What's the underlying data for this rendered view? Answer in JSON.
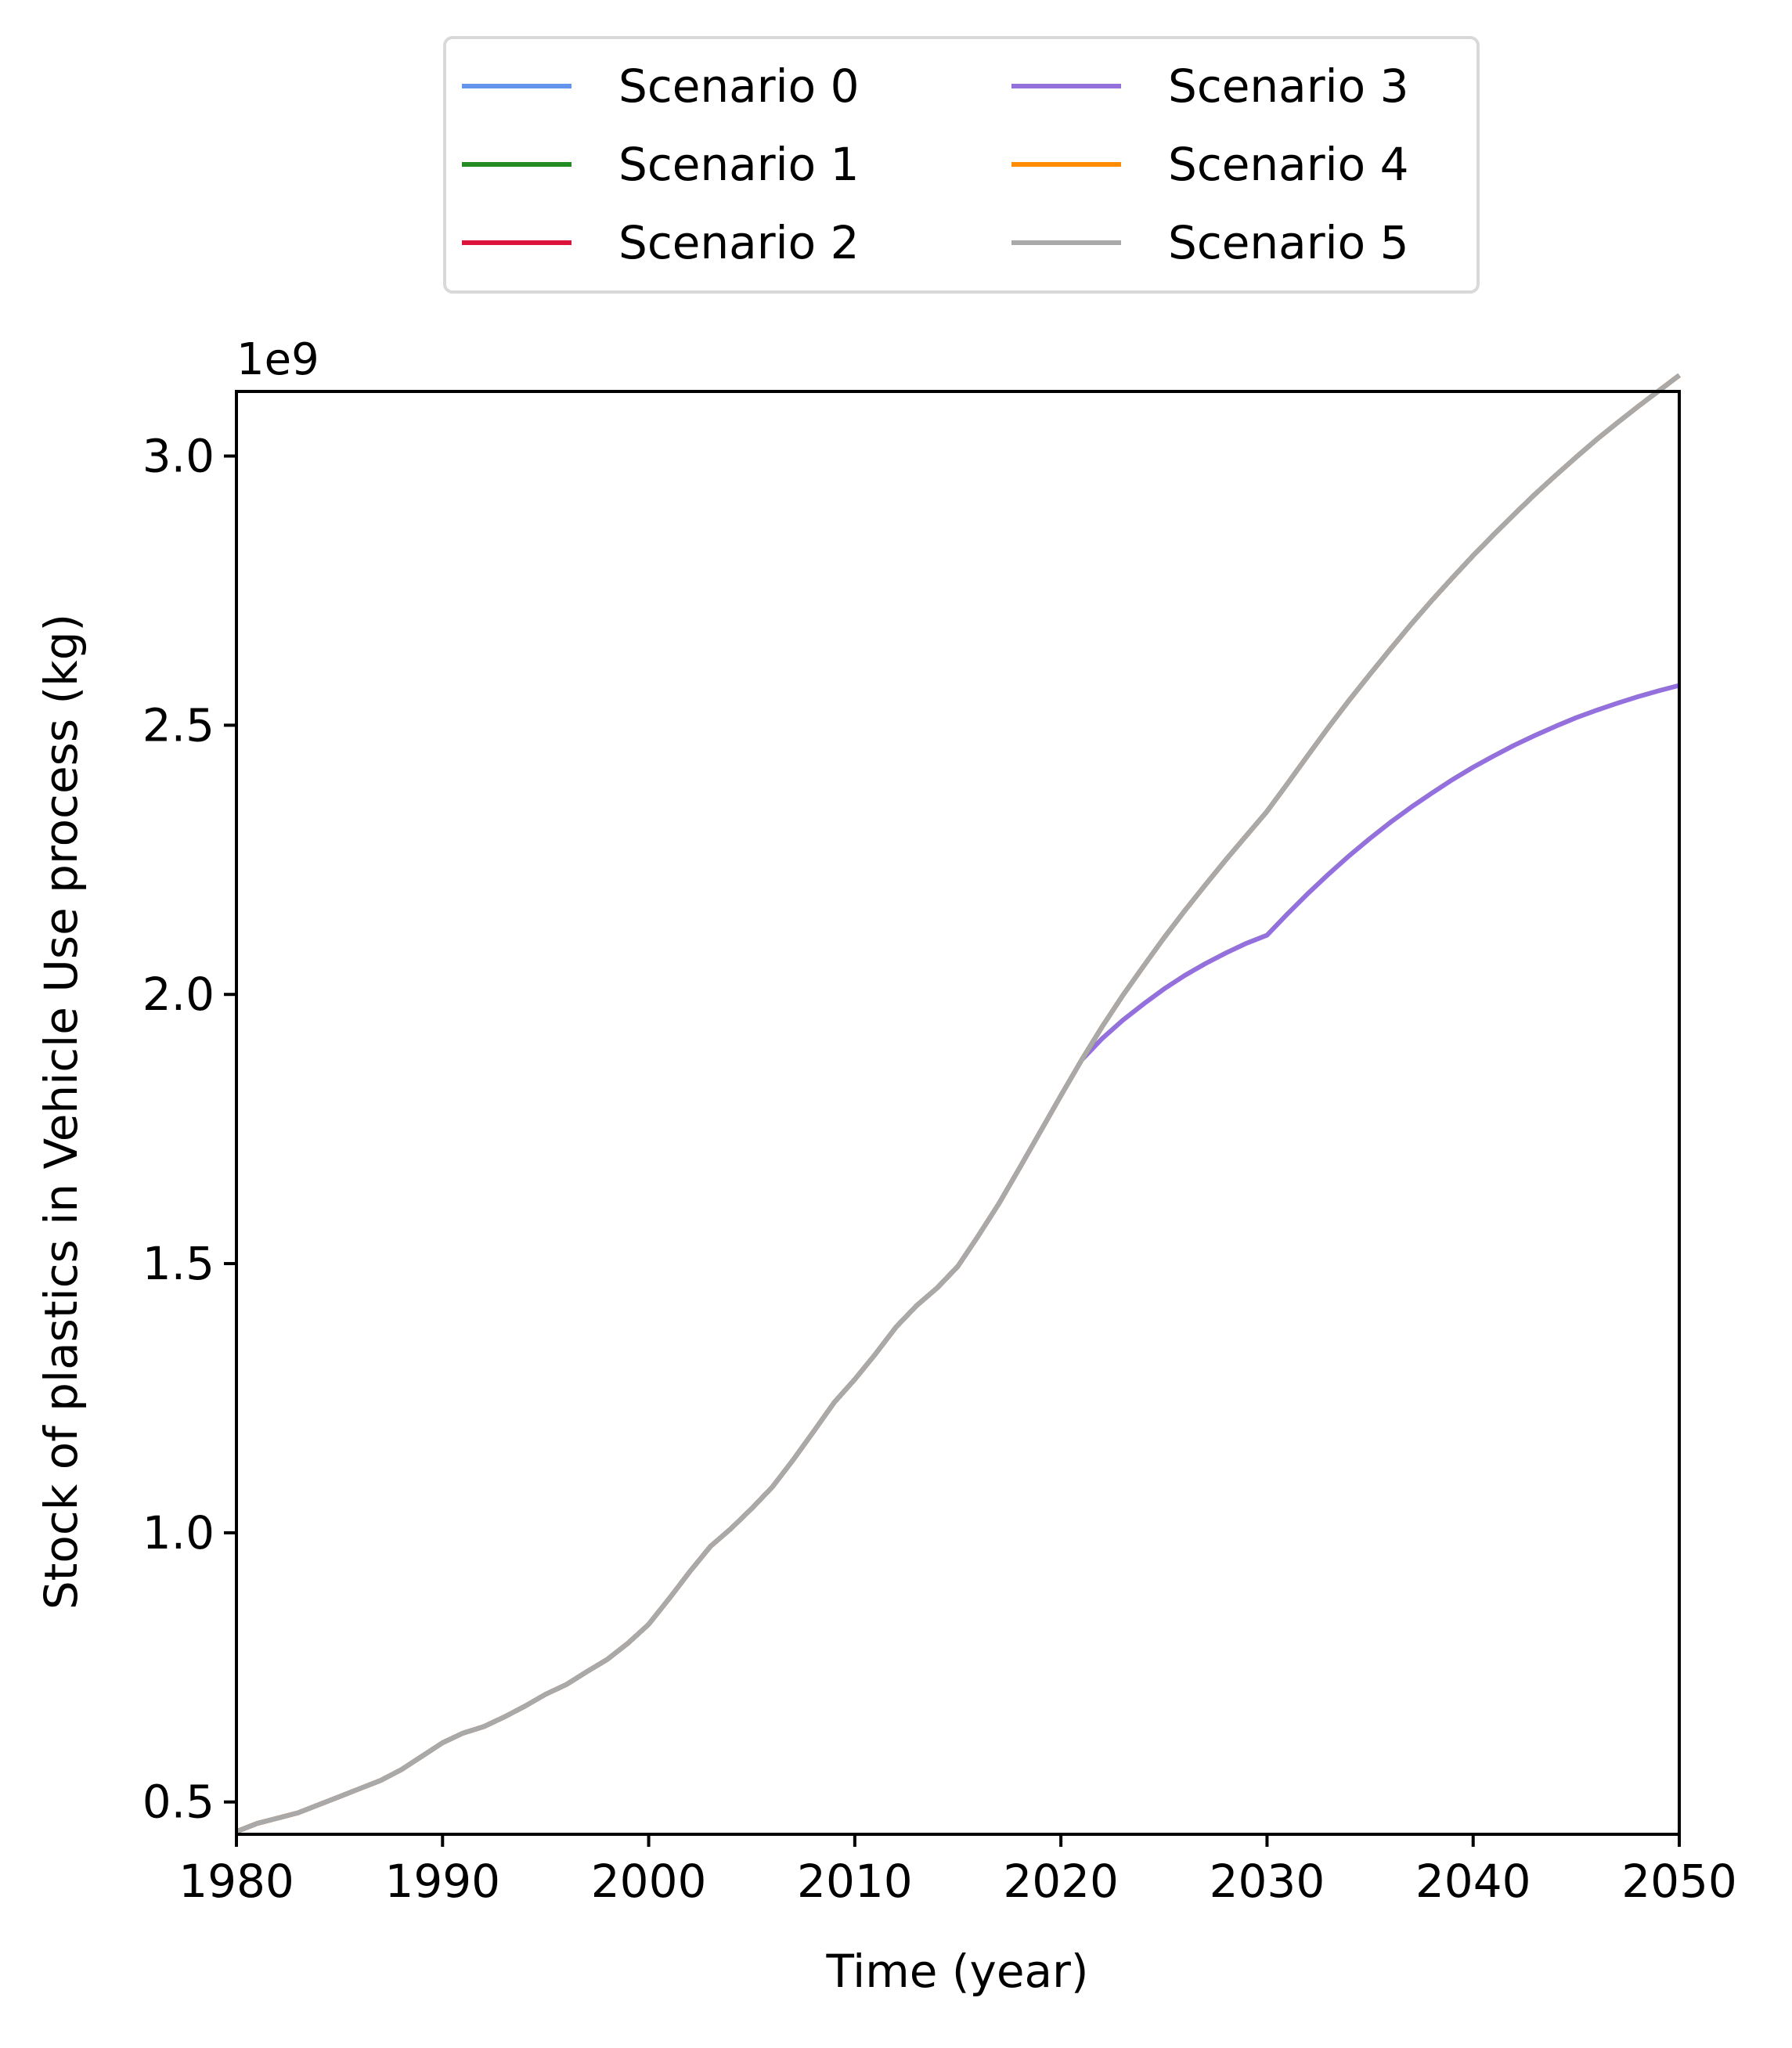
{
  "chart_data": {
    "type": "line",
    "title": "",
    "xlabel": "Time (year)",
    "ylabel": "Stock of plastics in Vehicle Use process (kg)",
    "y_offset_label": "1e9",
    "xlim": [
      1980,
      2050
    ],
    "ylim": [
      0.44,
      3.12
    ],
    "y_scale_note": "values in units of 1e9 kg",
    "x_ticks": [
      1980,
      1990,
      2000,
      2010,
      2020,
      2030,
      2040,
      2050
    ],
    "x_tick_labels": [
      "1980",
      "1990",
      "2000",
      "2010",
      "2020",
      "2030",
      "2040",
      "2050"
    ],
    "y_ticks": [
      0.5,
      1.0,
      1.5,
      2.0,
      2.5,
      3.0
    ],
    "y_tick_labels": [
      "0.5",
      "1.0",
      "1.5",
      "2.0",
      "2.5",
      "3.0"
    ],
    "grid": false,
    "legend": {
      "placement": "top-center, above plot",
      "columns": 2
    },
    "x": [
      1980,
      1981,
      1982,
      1983,
      1984,
      1985,
      1986,
      1987,
      1988,
      1989,
      1990,
      1991,
      1992,
      1993,
      1994,
      1995,
      1996,
      1997,
      1998,
      1999,
      2000,
      2001,
      2002,
      2003,
      2004,
      2005,
      2006,
      2007,
      2008,
      2009,
      2010,
      2011,
      2012,
      2013,
      2014,
      2015,
      2016,
      2017,
      2018,
      2019,
      2020,
      2021,
      2022,
      2023,
      2024,
      2025,
      2026,
      2027,
      2028,
      2029,
      2030,
      2031,
      2032,
      2033,
      2034,
      2035,
      2036,
      2037,
      2038,
      2039,
      2040,
      2041,
      2042,
      2043,
      2044,
      2045,
      2046,
      2047,
      2048,
      2049,
      2050
    ],
    "series": [
      {
        "name": "Scenario 0",
        "color": "#6495ED",
        "values": [
          0.445,
          0.46,
          0.47,
          0.48,
          0.495,
          0.51,
          0.525,
          0.54,
          0.56,
          0.585,
          0.61,
          0.628,
          0.64,
          0.658,
          0.678,
          0.7,
          0.718,
          0.742,
          0.765,
          0.795,
          0.83,
          0.878,
          0.928,
          0.975,
          1.008,
          1.045,
          1.085,
          1.135,
          1.188,
          1.242,
          1.285,
          1.332,
          1.382,
          1.422,
          1.455,
          1.495,
          1.552,
          1.612,
          1.678,
          1.745,
          1.812,
          1.878,
          1.94,
          1.998,
          2.052,
          2.105,
          2.155,
          2.203,
          2.25,
          2.295,
          2.34,
          2.392,
          2.445,
          2.497,
          2.547,
          2.595,
          2.642,
          2.688,
          2.732,
          2.774,
          2.815,
          2.854,
          2.892,
          2.929,
          2.964,
          2.998,
          3.031,
          3.062,
          3.092,
          3.121,
          3.15
        ]
      },
      {
        "name": "Scenario 1",
        "color": "#228B22",
        "values": [
          0.445,
          0.46,
          0.47,
          0.48,
          0.495,
          0.51,
          0.525,
          0.54,
          0.56,
          0.585,
          0.61,
          0.628,
          0.64,
          0.658,
          0.678,
          0.7,
          0.718,
          0.742,
          0.765,
          0.795,
          0.83,
          0.878,
          0.928,
          0.975,
          1.008,
          1.045,
          1.085,
          1.135,
          1.188,
          1.242,
          1.285,
          1.332,
          1.382,
          1.422,
          1.455,
          1.495,
          1.552,
          1.612,
          1.678,
          1.745,
          1.812,
          1.878,
          1.94,
          1.998,
          2.052,
          2.105,
          2.155,
          2.203,
          2.25,
          2.295,
          2.34,
          2.392,
          2.445,
          2.497,
          2.547,
          2.595,
          2.642,
          2.688,
          2.732,
          2.774,
          2.815,
          2.854,
          2.892,
          2.929,
          2.964,
          2.998,
          3.031,
          3.062,
          3.092,
          3.121,
          3.15
        ]
      },
      {
        "name": "Scenario 2",
        "color": "#DC143C",
        "values": [
          0.445,
          0.46,
          0.47,
          0.48,
          0.495,
          0.51,
          0.525,
          0.54,
          0.56,
          0.585,
          0.61,
          0.628,
          0.64,
          0.658,
          0.678,
          0.7,
          0.718,
          0.742,
          0.765,
          0.795,
          0.83,
          0.878,
          0.928,
          0.975,
          1.008,
          1.045,
          1.085,
          1.135,
          1.188,
          1.242,
          1.285,
          1.332,
          1.382,
          1.422,
          1.455,
          1.495,
          1.552,
          1.612,
          1.678,
          1.745,
          1.812,
          1.878,
          1.94,
          1.998,
          2.052,
          2.105,
          2.155,
          2.203,
          2.25,
          2.295,
          2.34,
          2.392,
          2.445,
          2.497,
          2.547,
          2.595,
          2.642,
          2.688,
          2.732,
          2.774,
          2.815,
          2.854,
          2.892,
          2.929,
          2.964,
          2.998,
          3.031,
          3.062,
          3.092,
          3.121,
          3.15
        ]
      },
      {
        "name": "Scenario 3",
        "color": "#9370DB",
        "values": [
          0.445,
          0.46,
          0.47,
          0.48,
          0.495,
          0.51,
          0.525,
          0.54,
          0.56,
          0.585,
          0.61,
          0.628,
          0.64,
          0.658,
          0.678,
          0.7,
          0.718,
          0.742,
          0.765,
          0.795,
          0.83,
          0.878,
          0.928,
          0.975,
          1.008,
          1.045,
          1.085,
          1.135,
          1.188,
          1.242,
          1.285,
          1.332,
          1.382,
          1.422,
          1.455,
          1.495,
          1.552,
          1.612,
          1.678,
          1.745,
          1.812,
          1.878,
          1.918,
          1.952,
          1.982,
          2.01,
          2.035,
          2.057,
          2.077,
          2.095,
          2.11,
          2.15,
          2.188,
          2.224,
          2.258,
          2.29,
          2.32,
          2.348,
          2.374,
          2.399,
          2.422,
          2.443,
          2.463,
          2.481,
          2.498,
          2.514,
          2.528,
          2.541,
          2.553,
          2.564,
          2.574
        ]
      },
      {
        "name": "Scenario 4",
        "color": "#FF8C00",
        "values": [
          0.445,
          0.46,
          0.47,
          0.48,
          0.495,
          0.51,
          0.525,
          0.54,
          0.56,
          0.585,
          0.61,
          0.628,
          0.64,
          0.658,
          0.678,
          0.7,
          0.718,
          0.742,
          0.765,
          0.795,
          0.83,
          0.878,
          0.928,
          0.975,
          1.008,
          1.045,
          1.085,
          1.135,
          1.188,
          1.242,
          1.285,
          1.332,
          1.382,
          1.422,
          1.455,
          1.495,
          1.552,
          1.612,
          1.678,
          1.745,
          1.812,
          1.878,
          1.94,
          1.998,
          2.052,
          2.105,
          2.155,
          2.203,
          2.25,
          2.295,
          2.34,
          2.392,
          2.445,
          2.497,
          2.547,
          2.595,
          2.642,
          2.688,
          2.732,
          2.774,
          2.815,
          2.854,
          2.892,
          2.929,
          2.964,
          2.998,
          3.031,
          3.062,
          3.092,
          3.121,
          3.15
        ]
      },
      {
        "name": "Scenario 5",
        "color": "#A9A9A9",
        "values": [
          0.445,
          0.46,
          0.47,
          0.48,
          0.495,
          0.51,
          0.525,
          0.54,
          0.56,
          0.585,
          0.61,
          0.628,
          0.64,
          0.658,
          0.678,
          0.7,
          0.718,
          0.742,
          0.765,
          0.795,
          0.83,
          0.878,
          0.928,
          0.975,
          1.008,
          1.045,
          1.085,
          1.135,
          1.188,
          1.242,
          1.285,
          1.332,
          1.382,
          1.422,
          1.455,
          1.495,
          1.552,
          1.612,
          1.678,
          1.745,
          1.812,
          1.878,
          1.94,
          1.998,
          2.052,
          2.105,
          2.155,
          2.203,
          2.25,
          2.295,
          2.34,
          2.392,
          2.445,
          2.497,
          2.547,
          2.595,
          2.642,
          2.688,
          2.732,
          2.774,
          2.815,
          2.854,
          2.892,
          2.929,
          2.964,
          2.998,
          3.031,
          3.062,
          3.092,
          3.121,
          3.15
        ]
      }
    ]
  }
}
